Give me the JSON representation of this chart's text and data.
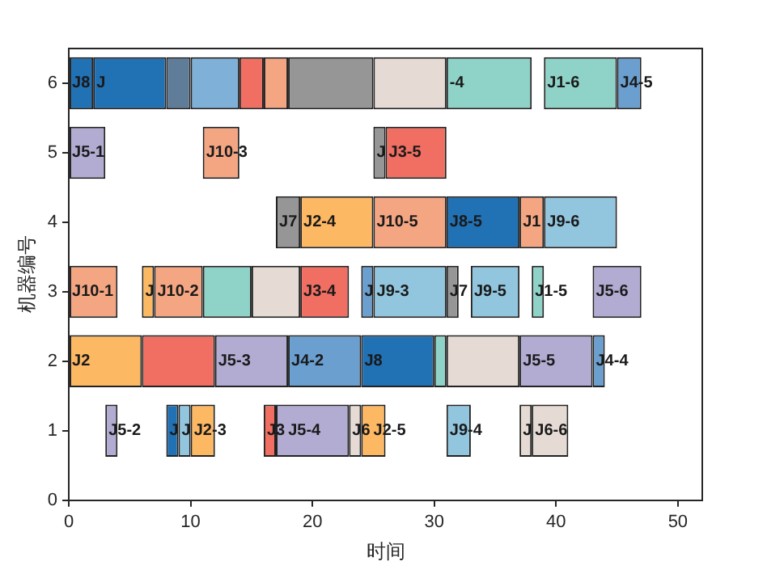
{
  "chart_data": {
    "type": "bar",
    "orientation": "horizontal",
    "xlabel": "时间",
    "ylabel": "机器编号",
    "xlim": [
      0,
      52
    ],
    "xticks": [
      0,
      10,
      20,
      30,
      40,
      50
    ],
    "ylim": [
      0,
      6.5
    ],
    "yticks": [
      0,
      1,
      2,
      3,
      4,
      5,
      6
    ],
    "grid": false,
    "legend": false,
    "x": [
      1,
      2,
      3,
      4,
      5,
      6
    ],
    "series": [
      {
        "base": [
          3,
          0,
          0,
          17,
          0,
          0
        ],
        "values": [
          1,
          6,
          4,
          2,
          3,
          2
        ],
        "colors": [
          "#b2abd2",
          "#fdb863",
          "#f4a582",
          "#969696",
          "#b2abd2",
          "#2171b5"
        ]
      },
      {
        "base": [
          8,
          6,
          6,
          19,
          11,
          2
        ],
        "values": [
          1,
          6,
          1,
          6,
          3,
          6
        ],
        "colors": [
          "#2171b5",
          "#f06e62",
          "#fdb863",
          "#fdb863",
          "#f4a582",
          "#2171b5"
        ]
      },
      {
        "base": [
          9,
          12,
          7,
          25,
          25,
          8
        ],
        "values": [
          1,
          6,
          4,
          6,
          1,
          2
        ],
        "colors": [
          "#92c5de",
          "#b2abd2",
          "#f4a582",
          "#f4a582",
          "#969696",
          "#5f7d99"
        ]
      },
      {
        "base": [
          10,
          18,
          11,
          31,
          26,
          10
        ],
        "values": [
          2,
          6,
          4,
          6,
          5,
          4
        ],
        "colors": [
          "#fdb863",
          "#6a9fd0",
          "#8fd3c8",
          "#2171b5",
          "#f06e62",
          "#7fb0d8"
        ]
      },
      {
        "base": [
          16,
          24,
          15,
          37,
          null,
          14
        ],
        "values": [
          1,
          6,
          4,
          2,
          null,
          2
        ],
        "colors": [
          "#f06e62",
          "#2171b5",
          "#e5dbd4",
          "#f4a582",
          null,
          "#f06e62"
        ]
      },
      {
        "base": [
          17,
          30,
          19,
          39,
          null,
          16
        ],
        "values": [
          6,
          1,
          4,
          6,
          null,
          2
        ],
        "colors": [
          "#b2abd2",
          "#8fd3c8",
          "#f06e62",
          "#92c5de",
          null,
          "#f4a582"
        ]
      },
      {
        "base": [
          23,
          31,
          24,
          null,
          null,
          18
        ],
        "values": [
          1,
          6,
          1,
          null,
          null,
          7
        ],
        "colors": [
          "#e5dbd4",
          "#e5dbd4",
          "#6a9fd0",
          null,
          null,
          "#969696"
        ]
      },
      {
        "base": [
          24,
          37,
          25,
          null,
          null,
          25
        ],
        "values": [
          2,
          6,
          6,
          null,
          null,
          6
        ],
        "colors": [
          "#fdb863",
          "#b2abd2",
          "#92c5de",
          null,
          null,
          "#e5dbd4"
        ]
      },
      {
        "base": [
          31,
          43,
          31,
          null,
          null,
          31
        ],
        "values": [
          2,
          1,
          1,
          null,
          null,
          7
        ],
        "colors": [
          "#92c5de",
          "#6a9fd0",
          "#969696",
          null,
          null,
          "#8fd3c8"
        ]
      },
      {
        "base": [
          37,
          null,
          33,
          null,
          null,
          39
        ],
        "values": [
          1,
          null,
          4,
          null,
          null,
          6
        ],
        "colors": [
          "#e5dbd4",
          null,
          "#92c5de",
          null,
          null,
          "#8fd3c8"
        ]
      },
      {
        "base": [
          38,
          null,
          38,
          null,
          null,
          45
        ],
        "values": [
          3,
          null,
          1,
          null,
          null,
          2
        ],
        "colors": [
          "#e5dbd4",
          null,
          "#8fd3c8",
          null,
          null,
          "#6a9fd0"
        ]
      },
      {
        "base": [
          null,
          null,
          43,
          null,
          null,
          null
        ],
        "values": [
          null,
          null,
          4,
          null,
          null,
          null
        ],
        "colors": [
          null,
          null,
          "#b2abd2",
          null,
          null,
          null
        ]
      }
    ],
    "annotations": [
      {
        "text": "J5-2",
        "x": 3,
        "y": 1
      },
      {
        "text": "J",
        "x": 8,
        "y": 1
      },
      {
        "text": "J",
        "x": 9,
        "y": 1
      },
      {
        "text": "J2-3",
        "x": 10,
        "y": 1
      },
      {
        "text": "J3",
        "x": 16,
        "y": 1
      },
      {
        "text": "J5-4",
        "x": 17,
        "y": 1
      },
      {
        "text": "J6",
        "x": 23,
        "y": 1
      },
      {
        "text": "J2-5",
        "x": 24,
        "y": 1
      },
      {
        "text": "J9-4",
        "x": 31,
        "y": 1
      },
      {
        "text": "J",
        "x": 37,
        "y": 1
      },
      {
        "text": "J6-6",
        "x": 38,
        "y": 1
      },
      {
        "text": "J2",
        "x": 0,
        "y": 2
      },
      {
        "text": "J5-3",
        "x": 12,
        "y": 2
      },
      {
        "text": "J4-2",
        "x": 18,
        "y": 2
      },
      {
        "text": "J8",
        "x": 24,
        "y": 2
      },
      {
        "text": "J5-5",
        "x": 37,
        "y": 2
      },
      {
        "text": "J4-4",
        "x": 43,
        "y": 2
      },
      {
        "text": "J10-1",
        "x": 0,
        "y": 3
      },
      {
        "text": "J",
        "x": 6,
        "y": 3
      },
      {
        "text": "J10-2",
        "x": 7,
        "y": 3
      },
      {
        "text": "J3-4",
        "x": 19,
        "y": 3
      },
      {
        "text": "J",
        "x": 24,
        "y": 3
      },
      {
        "text": "J9-3",
        "x": 25,
        "y": 3
      },
      {
        "text": "J7",
        "x": 31,
        "y": 3
      },
      {
        "text": "J9-5",
        "x": 33,
        "y": 3
      },
      {
        "text": "J1-5",
        "x": 38,
        "y": 3
      },
      {
        "text": "J5-6",
        "x": 43,
        "y": 3
      },
      {
        "text": "J7",
        "x": 17,
        "y": 4
      },
      {
        "text": "J2-4",
        "x": 19,
        "y": 4
      },
      {
        "text": "J10-5",
        "x": 25,
        "y": 4
      },
      {
        "text": "J8-5",
        "x": 31,
        "y": 4
      },
      {
        "text": "J1",
        "x": 37,
        "y": 4
      },
      {
        "text": "J9-6",
        "x": 39,
        "y": 4
      },
      {
        "text": "J5-1",
        "x": 0,
        "y": 5
      },
      {
        "text": "J10-3",
        "x": 11,
        "y": 5
      },
      {
        "text": "J",
        "x": 25,
        "y": 5
      },
      {
        "text": "J3-5",
        "x": 26,
        "y": 5
      },
      {
        "text": "J8",
        "x": 0,
        "y": 6
      },
      {
        "text": "J",
        "x": 2,
        "y": 6
      },
      {
        "text": "-4",
        "x": 31,
        "y": 6
      },
      {
        "text": "J1-6",
        "x": 39,
        "y": 6
      },
      {
        "text": "J4-5",
        "x": 45,
        "y": 6
      }
    ]
  }
}
